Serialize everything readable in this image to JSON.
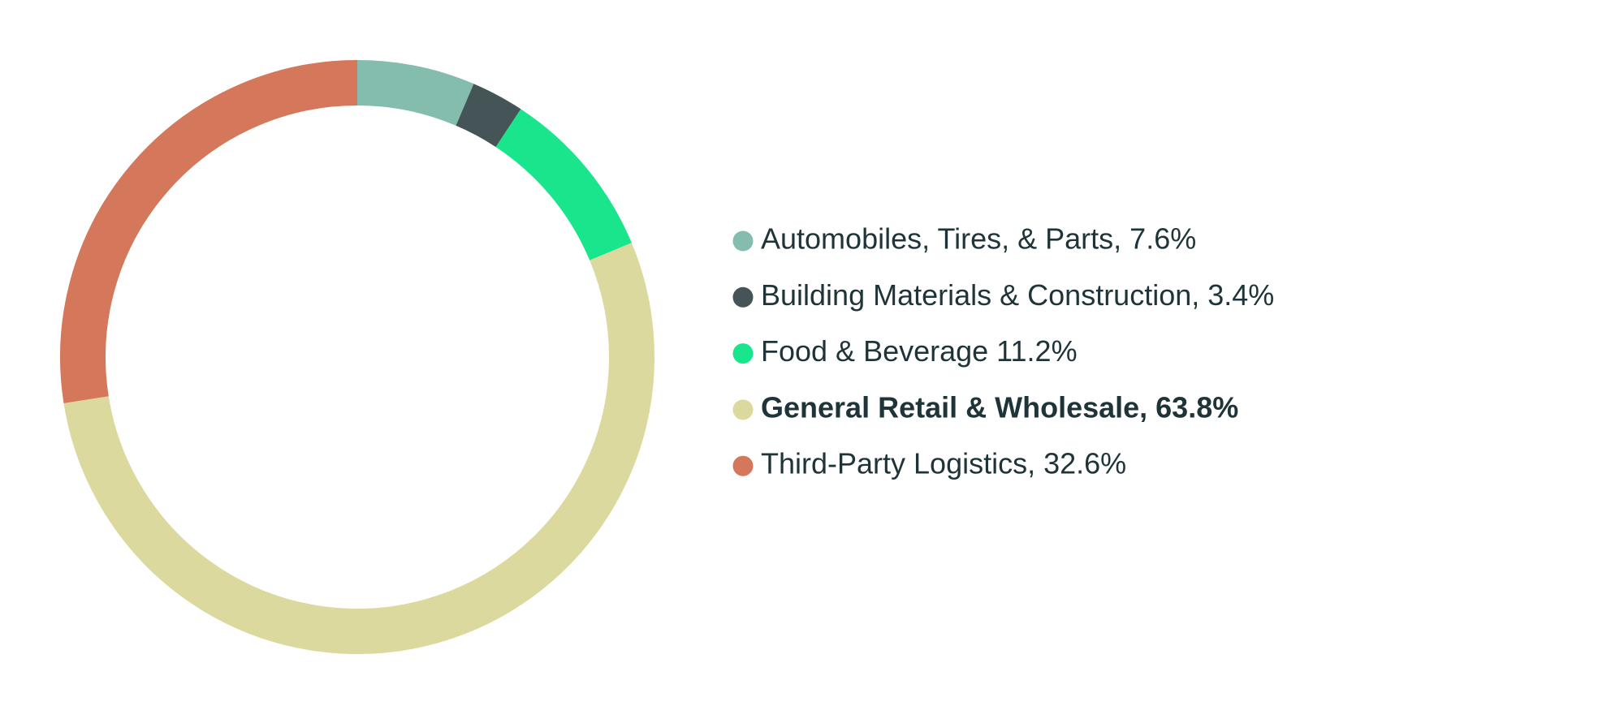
{
  "chart_data": {
    "type": "donut",
    "labels": [
      "Automobiles, Tires, & Parts, 7.6%",
      "Building Materials & Construction, 3.4%",
      "Food & Beverage 11.2%",
      "General Retail & Wholesale, 63.8%",
      "Third-Party Logistics, 32.6%"
    ],
    "values": [
      7.6,
      3.4,
      11.2,
      63.8,
      32.6
    ],
    "colors": [
      "#84bcad",
      "#455457",
      "#19e68c",
      "#dbd99e",
      "#d4775a"
    ],
    "highlight_index": 3,
    "legend": "right"
  }
}
